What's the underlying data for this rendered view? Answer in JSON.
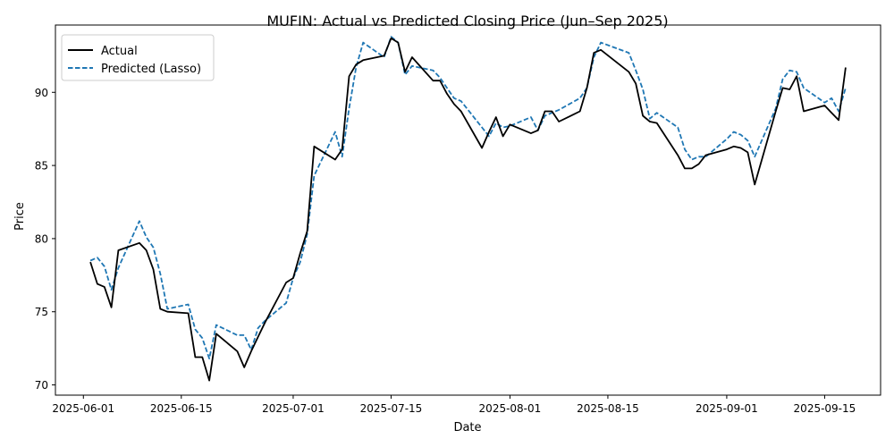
{
  "chart_data": {
    "type": "line",
    "title": "MUFIN: Actual vs Predicted Closing Price (Jun–Sep 2025)",
    "xlabel": "Date",
    "ylabel": "Price",
    "x_range": [
      "2025-05-28",
      "2025-09-23"
    ],
    "ylim": [
      69.3,
      94.6
    ],
    "grid": false,
    "legend_position": "top-left",
    "x_ticks": [
      {
        "date": "2025-06-01",
        "label": "2025-06-01"
      },
      {
        "date": "2025-06-15",
        "label": "2025-06-15"
      },
      {
        "date": "2025-07-01",
        "label": "2025-07-01"
      },
      {
        "date": "2025-07-15",
        "label": "2025-07-15"
      },
      {
        "date": "2025-08-01",
        "label": "2025-08-01"
      },
      {
        "date": "2025-08-15",
        "label": "2025-08-15"
      },
      {
        "date": "2025-09-01",
        "label": "2025-09-01"
      },
      {
        "date": "2025-09-15",
        "label": "2025-09-15"
      }
    ],
    "y_ticks": [
      {
        "value": 70,
        "label": "70"
      },
      {
        "value": 75,
        "label": "75"
      },
      {
        "value": 80,
        "label": "80"
      },
      {
        "value": 85,
        "label": "85"
      },
      {
        "value": 90,
        "label": "90"
      }
    ],
    "series": [
      {
        "name": "Actual",
        "color": "#000000",
        "style": "solid",
        "points": [
          [
            "2025-06-02",
            78.4
          ],
          [
            "2025-06-03",
            76.9
          ],
          [
            "2025-06-04",
            76.7
          ],
          [
            "2025-06-05",
            75.3
          ],
          [
            "2025-06-06",
            79.2
          ],
          [
            "2025-06-09",
            79.7
          ],
          [
            "2025-06-10",
            79.2
          ],
          [
            "2025-06-11",
            77.9
          ],
          [
            "2025-06-12",
            75.2
          ],
          [
            "2025-06-13",
            75.0
          ],
          [
            "2025-06-16",
            74.9
          ],
          [
            "2025-06-17",
            71.9
          ],
          [
            "2025-06-18",
            71.9
          ],
          [
            "2025-06-19",
            70.3
          ],
          [
            "2025-06-20",
            73.5
          ],
          [
            "2025-06-23",
            72.3
          ],
          [
            "2025-06-24",
            71.2
          ],
          [
            "2025-06-25",
            72.3
          ],
          [
            "2025-06-26",
            73.3
          ],
          [
            "2025-06-27",
            74.3
          ],
          [
            "2025-06-30",
            77.0
          ],
          [
            "2025-07-01",
            77.3
          ],
          [
            "2025-07-02",
            79.0
          ],
          [
            "2025-07-03",
            80.5
          ],
          [
            "2025-07-04",
            86.3
          ],
          [
            "2025-07-07",
            85.4
          ],
          [
            "2025-07-08",
            86.1
          ],
          [
            "2025-07-09",
            91.1
          ],
          [
            "2025-07-10",
            91.9
          ],
          [
            "2025-07-11",
            92.2
          ],
          [
            "2025-07-14",
            92.5
          ],
          [
            "2025-07-15",
            93.7
          ],
          [
            "2025-07-16",
            93.4
          ],
          [
            "2025-07-17",
            91.4
          ],
          [
            "2025-07-18",
            92.4
          ],
          [
            "2025-07-21",
            90.8
          ],
          [
            "2025-07-22",
            90.8
          ],
          [
            "2025-07-23",
            89.9
          ],
          [
            "2025-07-24",
            89.2
          ],
          [
            "2025-07-25",
            88.7
          ],
          [
            "2025-07-28",
            86.2
          ],
          [
            "2025-07-29",
            87.3
          ],
          [
            "2025-07-30",
            88.3
          ],
          [
            "2025-07-31",
            87.0
          ],
          [
            "2025-08-01",
            87.8
          ],
          [
            "2025-08-04",
            87.2
          ],
          [
            "2025-08-05",
            87.4
          ],
          [
            "2025-08-06",
            88.7
          ],
          [
            "2025-08-07",
            88.7
          ],
          [
            "2025-08-08",
            88.0
          ],
          [
            "2025-08-11",
            88.7
          ],
          [
            "2025-08-12",
            90.3
          ],
          [
            "2025-08-13",
            92.7
          ],
          [
            "2025-08-14",
            92.9
          ],
          [
            "2025-08-18",
            91.4
          ],
          [
            "2025-08-19",
            90.6
          ],
          [
            "2025-08-20",
            88.4
          ],
          [
            "2025-08-21",
            88.0
          ],
          [
            "2025-08-22",
            87.9
          ],
          [
            "2025-08-25",
            85.7
          ],
          [
            "2025-08-26",
            84.8
          ],
          [
            "2025-08-27",
            84.8
          ],
          [
            "2025-08-28",
            85.1
          ],
          [
            "2025-08-29",
            85.7
          ],
          [
            "2025-09-01",
            86.1
          ],
          [
            "2025-09-02",
            86.3
          ],
          [
            "2025-09-03",
            86.2
          ],
          [
            "2025-09-04",
            85.9
          ],
          [
            "2025-09-05",
            83.7
          ],
          [
            "2025-09-08",
            88.7
          ],
          [
            "2025-09-09",
            90.3
          ],
          [
            "2025-09-10",
            90.2
          ],
          [
            "2025-09-11",
            91.1
          ],
          [
            "2025-09-12",
            88.7
          ],
          [
            "2025-09-15",
            89.1
          ],
          [
            "2025-09-16",
            88.6
          ],
          [
            "2025-09-17",
            88.1
          ],
          [
            "2025-09-18",
            91.7
          ]
        ]
      },
      {
        "name": "Predicted (Lasso)",
        "color": "#1f77b4",
        "style": "dashed",
        "points": [
          [
            "2025-06-02",
            78.5
          ],
          [
            "2025-06-03",
            78.7
          ],
          [
            "2025-06-04",
            78.1
          ],
          [
            "2025-06-05",
            76.5
          ],
          [
            "2025-06-06",
            78.0
          ],
          [
            "2025-06-09",
            81.2
          ],
          [
            "2025-06-10",
            80.1
          ],
          [
            "2025-06-11",
            79.4
          ],
          [
            "2025-06-12",
            77.6
          ],
          [
            "2025-06-13",
            75.2
          ],
          [
            "2025-06-16",
            75.5
          ],
          [
            "2025-06-17",
            73.8
          ],
          [
            "2025-06-18",
            73.2
          ],
          [
            "2025-06-19",
            71.8
          ],
          [
            "2025-06-20",
            74.1
          ],
          [
            "2025-06-23",
            73.4
          ],
          [
            "2025-06-24",
            73.4
          ],
          [
            "2025-06-25",
            72.4
          ],
          [
            "2025-06-26",
            73.9
          ],
          [
            "2025-06-27",
            74.4
          ],
          [
            "2025-06-30",
            75.6
          ],
          [
            "2025-07-01",
            77.3
          ],
          [
            "2025-07-02",
            78.4
          ],
          [
            "2025-07-03",
            80.3
          ],
          [
            "2025-07-04",
            84.3
          ],
          [
            "2025-07-07",
            87.3
          ],
          [
            "2025-07-08",
            85.6
          ],
          [
            "2025-07-09",
            88.9
          ],
          [
            "2025-07-10",
            91.7
          ],
          [
            "2025-07-11",
            93.4
          ],
          [
            "2025-07-14",
            92.4
          ],
          [
            "2025-07-15",
            93.8
          ],
          [
            "2025-07-16",
            93.4
          ],
          [
            "2025-07-17",
            91.2
          ],
          [
            "2025-07-18",
            91.8
          ],
          [
            "2025-07-21",
            91.5
          ],
          [
            "2025-07-22",
            91.0
          ],
          [
            "2025-07-23",
            90.3
          ],
          [
            "2025-07-24",
            89.6
          ],
          [
            "2025-07-25",
            89.4
          ],
          [
            "2025-07-28",
            87.6
          ],
          [
            "2025-07-29",
            87.0
          ],
          [
            "2025-07-30",
            87.9
          ],
          [
            "2025-07-31",
            87.6
          ],
          [
            "2025-08-01",
            87.7
          ],
          [
            "2025-08-04",
            88.3
          ],
          [
            "2025-08-05",
            87.4
          ],
          [
            "2025-08-06",
            88.4
          ],
          [
            "2025-08-07",
            88.6
          ],
          [
            "2025-08-08",
            88.8
          ],
          [
            "2025-08-11",
            89.6
          ],
          [
            "2025-08-12",
            90.3
          ],
          [
            "2025-08-13",
            92.4
          ],
          [
            "2025-08-14",
            93.4
          ],
          [
            "2025-08-18",
            92.7
          ],
          [
            "2025-08-19",
            91.5
          ],
          [
            "2025-08-20",
            90.2
          ],
          [
            "2025-08-21",
            88.2
          ],
          [
            "2025-08-22",
            88.6
          ],
          [
            "2025-08-25",
            87.6
          ],
          [
            "2025-08-26",
            86.1
          ],
          [
            "2025-08-27",
            85.4
          ],
          [
            "2025-08-28",
            85.6
          ],
          [
            "2025-08-29",
            85.6
          ],
          [
            "2025-09-01",
            86.8
          ],
          [
            "2025-09-02",
            87.3
          ],
          [
            "2025-09-03",
            87.1
          ],
          [
            "2025-09-04",
            86.7
          ],
          [
            "2025-09-05",
            85.6
          ],
          [
            "2025-09-08",
            88.9
          ],
          [
            "2025-09-09",
            90.9
          ],
          [
            "2025-09-10",
            91.5
          ],
          [
            "2025-09-11",
            91.4
          ],
          [
            "2025-09-12",
            90.3
          ],
          [
            "2025-09-15",
            89.3
          ],
          [
            "2025-09-16",
            89.6
          ],
          [
            "2025-09-17",
            88.7
          ],
          [
            "2025-09-18",
            90.3
          ]
        ]
      }
    ]
  }
}
